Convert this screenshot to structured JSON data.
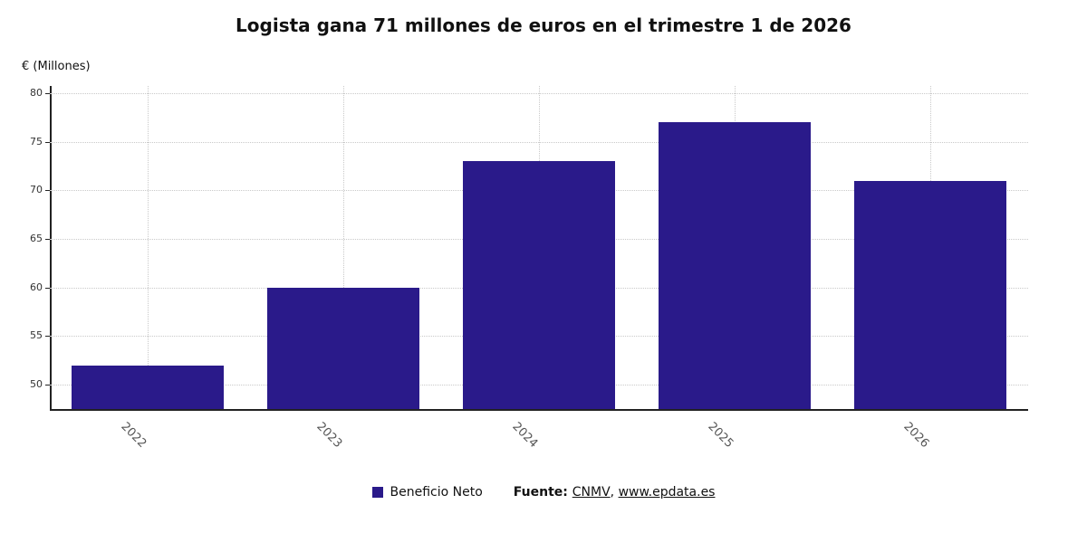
{
  "title": "Logista gana 71 millones de euros en el trimestre 1 de 2026",
  "y_axis_label": "€ (Millones)",
  "legend": {
    "label": "Beneficio Neto"
  },
  "source": {
    "prefix": "Fuente: ",
    "link_cnmv": "CNMV",
    "separator": ", ",
    "link_epdata": "www.epdata.es"
  },
  "colors": {
    "bar": "#2a1a8a",
    "grid": "#c9c9c9",
    "axis": "#222222",
    "x_tick_label": "#555555",
    "y_tick_label": "#333333"
  },
  "chart_data": {
    "type": "bar",
    "title": "Logista gana 71 millones de euros en el trimestre 1 de 2026",
    "categories": [
      "2022",
      "2023",
      "2024",
      "2025",
      "2026"
    ],
    "series": [
      {
        "name": "Beneficio Neto",
        "values": [
          52,
          60,
          73,
          77,
          71
        ]
      }
    ],
    "xlabel": "",
    "ylabel": "€ (Millones)",
    "ylim": [
      47.5,
      80.75
    ],
    "yticks": [
      50,
      55,
      60,
      65,
      70,
      75,
      80
    ],
    "grid": true,
    "legend_position": "bottom"
  }
}
